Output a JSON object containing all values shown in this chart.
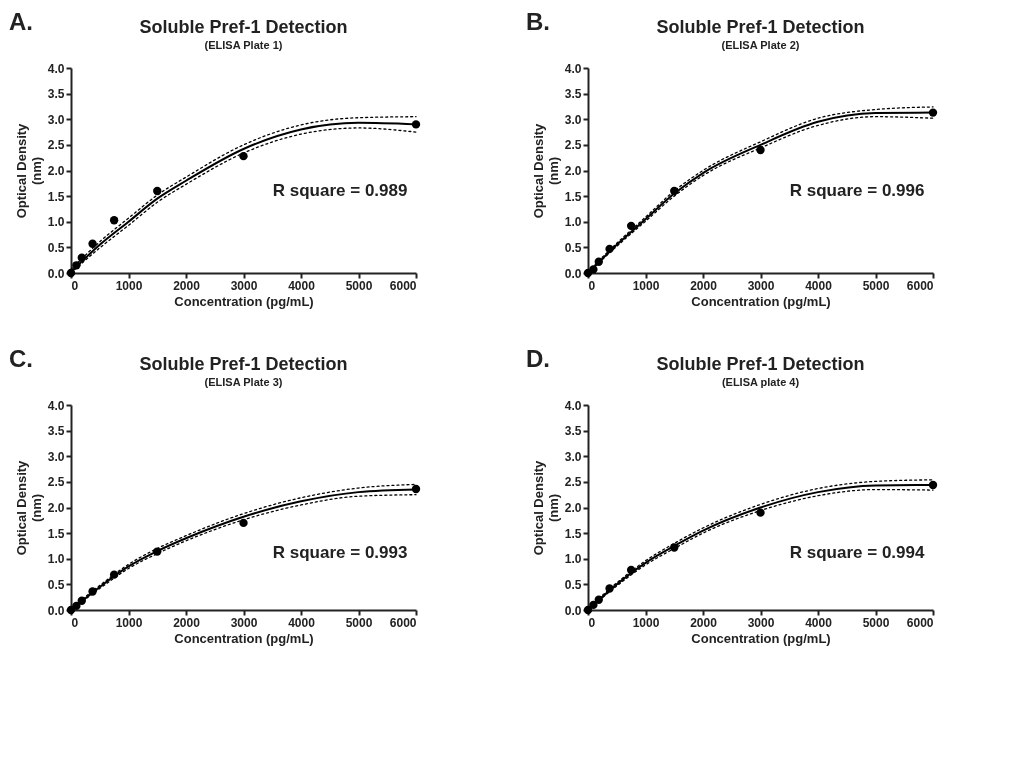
{
  "chart_data": [
    {
      "type": "scatter",
      "title": "Soluble Pref-1 Detection",
      "subtitle": "(ELISA Plate 1)",
      "xlabel": "Concentration (pg/mL)",
      "ylabel": [
        "Optical Density",
        "(nm)"
      ],
      "annotations": [
        "A.",
        "R square = 0.989"
      ],
      "xlim": [
        0,
        6000
      ],
      "ylim": [
        0,
        4.0
      ],
      "xticks": [
        0,
        1000,
        2000,
        3000,
        4000,
        5000,
        6000
      ],
      "yticks": [
        {
          "value": 0,
          "label": "0.0"
        },
        0.5,
        {
          "value": 1,
          "label": "1.0"
        },
        1.5,
        {
          "value": 2,
          "label": "2.0"
        },
        2.5,
        {
          "value": 3,
          "label": "3.0"
        },
        3.5,
        {
          "value": 4,
          "label": "4.0"
        }
      ],
      "series": [
        {
          "color": "#000000",
          "marker": "circle",
          "x": [
            0,
            93.75,
            187.5,
            375,
            750,
            1500,
            3000,
            6000
          ],
          "values": [
            0,
            0.15,
            0.3,
            0.57,
            1.03,
            1.6,
            2.28,
            2.9
          ]
        },
        {
          "type": "line",
          "color": "#000000",
          "line_style": "solid",
          "x": [
            0,
            500,
            1000,
            1500,
            2000,
            3000,
            4000,
            5000,
            6000
          ],
          "values": [
            0.02,
            0.55,
            1.0,
            1.45,
            1.8,
            2.42,
            2.8,
            2.93,
            2.9
          ]
        },
        {
          "type": "line",
          "color": "#000000",
          "line_style": "dotted",
          "x": [
            0,
            500,
            1000,
            1500,
            2000,
            3000,
            4000,
            5000,
            6000
          ],
          "values": [
            0,
            0.49,
            0.93,
            1.38,
            1.73,
            2.34,
            2.71,
            2.83,
            2.75
          ]
        },
        {
          "type": "line",
          "color": "#000000",
          "line_style": "dotted",
          "x": [
            0,
            500,
            1000,
            1500,
            2000,
            3000,
            4000,
            5000,
            6000
          ],
          "values": [
            0.07,
            0.61,
            1.07,
            1.52,
            1.87,
            2.5,
            2.89,
            3.03,
            3.05
          ]
        }
      ]
    },
    {
      "type": "scatter",
      "title": "Soluble Pref-1 Detection",
      "subtitle": "(ELISA Plate 2)",
      "xlabel": "Concentration (pg/mL)",
      "ylabel": [
        "Optical Density",
        "(nm)"
      ],
      "annotations": [
        "B.",
        "R square = 0.996"
      ],
      "xlim": [
        0,
        6000
      ],
      "ylim": [
        0,
        4.0
      ],
      "xticks": [
        0,
        1000,
        2000,
        3000,
        4000,
        5000,
        6000
      ],
      "yticks": [
        {
          "value": 0,
          "label": "0.0"
        },
        0.5,
        {
          "value": 1,
          "label": "1.0"
        },
        1.5,
        {
          "value": 2,
          "label": "2.0"
        },
        2.5,
        {
          "value": 3,
          "label": "3.0"
        },
        3.5,
        {
          "value": 4,
          "label": "4.0"
        }
      ],
      "series": [
        {
          "color": "#000000",
          "marker": "circle",
          "x": [
            0,
            93.75,
            187.5,
            375,
            750,
            1500,
            3000,
            6000
          ],
          "values": [
            0,
            0.07,
            0.22,
            0.47,
            0.92,
            1.6,
            2.4,
            3.13
          ]
        },
        {
          "type": "line",
          "color": "#000000",
          "line_style": "solid",
          "x": [
            0,
            500,
            1000,
            1500,
            2000,
            3000,
            4000,
            5000,
            6000
          ],
          "values": [
            0,
            0.55,
            1.05,
            1.55,
            1.95,
            2.5,
            2.95,
            3.12,
            3.13
          ]
        },
        {
          "type": "line",
          "color": "#000000",
          "line_style": "dotted",
          "x": [
            0,
            500,
            1000,
            1500,
            2000,
            3000,
            4000,
            5000,
            6000
          ],
          "values": [
            0,
            0.52,
            1.01,
            1.5,
            1.9,
            2.44,
            2.88,
            3.05,
            3.02
          ]
        },
        {
          "type": "line",
          "color": "#000000",
          "line_style": "dotted",
          "x": [
            0,
            500,
            1000,
            1500,
            2000,
            3000,
            4000,
            5000,
            6000
          ],
          "values": [
            0.03,
            0.58,
            1.09,
            1.6,
            2.0,
            2.56,
            3.02,
            3.19,
            3.24
          ]
        }
      ]
    },
    {
      "type": "scatter",
      "title": "Soluble Pref-1 Detection",
      "subtitle": "(ELISA Plate 3)",
      "xlabel": "Concentration (pg/mL)",
      "ylabel": [
        "Optical Density",
        "(nm)"
      ],
      "annotations": [
        "C.",
        "R square = 0.993"
      ],
      "xlim": [
        0,
        6000
      ],
      "ylim": [
        0,
        4.0
      ],
      "xticks": [
        0,
        1000,
        2000,
        3000,
        4000,
        5000,
        6000
      ],
      "yticks": [
        {
          "value": 0,
          "label": "0.0"
        },
        0.5,
        {
          "value": 1,
          "label": "1.0"
        },
        1.5,
        {
          "value": 2,
          "label": "2.0"
        },
        2.5,
        {
          "value": 3,
          "label": "3.0"
        },
        3.5,
        {
          "value": 4,
          "label": "4.0"
        }
      ],
      "series": [
        {
          "color": "#000000",
          "marker": "circle",
          "x": [
            0,
            93.75,
            187.5,
            375,
            750,
            1500,
            3000,
            6000
          ],
          "values": [
            0,
            0.08,
            0.18,
            0.36,
            0.69,
            1.14,
            1.7,
            2.36
          ]
        },
        {
          "type": "line",
          "color": "#000000",
          "line_style": "solid",
          "x": [
            0,
            500,
            1000,
            1500,
            2000,
            3000,
            4000,
            5000,
            6000
          ],
          "values": [
            0,
            0.45,
            0.85,
            1.15,
            1.4,
            1.82,
            2.12,
            2.3,
            2.35
          ]
        },
        {
          "type": "line",
          "color": "#000000",
          "line_style": "dotted",
          "x": [
            0,
            500,
            1000,
            1500,
            2000,
            3000,
            4000,
            5000,
            6000
          ],
          "values": [
            0,
            0.42,
            0.81,
            1.1,
            1.35,
            1.76,
            2.05,
            2.22,
            2.25
          ]
        },
        {
          "type": "line",
          "color": "#000000",
          "line_style": "dotted",
          "x": [
            0,
            500,
            1000,
            1500,
            2000,
            3000,
            4000,
            5000,
            6000
          ],
          "values": [
            0.03,
            0.48,
            0.89,
            1.2,
            1.45,
            1.88,
            2.19,
            2.38,
            2.45
          ]
        }
      ]
    },
    {
      "type": "scatter",
      "title": "Soluble Pref-1 Detection",
      "subtitle": "(ELISA plate 4)",
      "xlabel": "Concentration (pg/mL)",
      "ylabel": [
        "Optical Density",
        "(nm)"
      ],
      "annotations": [
        "D.",
        "R square = 0.994"
      ],
      "xlim": [
        0,
        6000
      ],
      "ylim": [
        0,
        4.0
      ],
      "xticks": [
        0,
        1000,
        2000,
        3000,
        4000,
        5000,
        6000
      ],
      "yticks": [
        {
          "value": 0,
          "label": "0.0"
        },
        0.5,
        {
          "value": 1,
          "label": "1.0"
        },
        1.5,
        {
          "value": 2,
          "label": "2.0"
        },
        2.5,
        {
          "value": 3,
          "label": "3.0"
        },
        3.5,
        {
          "value": 4,
          "label": "4.0"
        }
      ],
      "series": [
        {
          "color": "#000000",
          "marker": "circle",
          "x": [
            0,
            93.75,
            187.5,
            375,
            750,
            1500,
            3000,
            6000
          ],
          "values": [
            0,
            0.1,
            0.2,
            0.42,
            0.78,
            1.22,
            1.9,
            2.44
          ]
        },
        {
          "type": "line",
          "color": "#000000",
          "line_style": "solid",
          "x": [
            0,
            500,
            1000,
            1500,
            2000,
            3000,
            4000,
            5000,
            6000
          ],
          "values": [
            0,
            0.5,
            0.92,
            1.25,
            1.55,
            2.0,
            2.3,
            2.43,
            2.44
          ]
        },
        {
          "type": "line",
          "color": "#000000",
          "line_style": "dotted",
          "x": [
            0,
            500,
            1000,
            1500,
            2000,
            3000,
            4000,
            5000,
            6000
          ],
          "values": [
            0,
            0.47,
            0.88,
            1.2,
            1.5,
            1.94,
            2.23,
            2.35,
            2.34
          ]
        },
        {
          "type": "line",
          "color": "#000000",
          "line_style": "dotted",
          "x": [
            0,
            500,
            1000,
            1500,
            2000,
            3000,
            4000,
            5000,
            6000
          ],
          "values": [
            0.03,
            0.53,
            0.96,
            1.3,
            1.6,
            2.06,
            2.37,
            2.51,
            2.54
          ]
        }
      ]
    }
  ]
}
